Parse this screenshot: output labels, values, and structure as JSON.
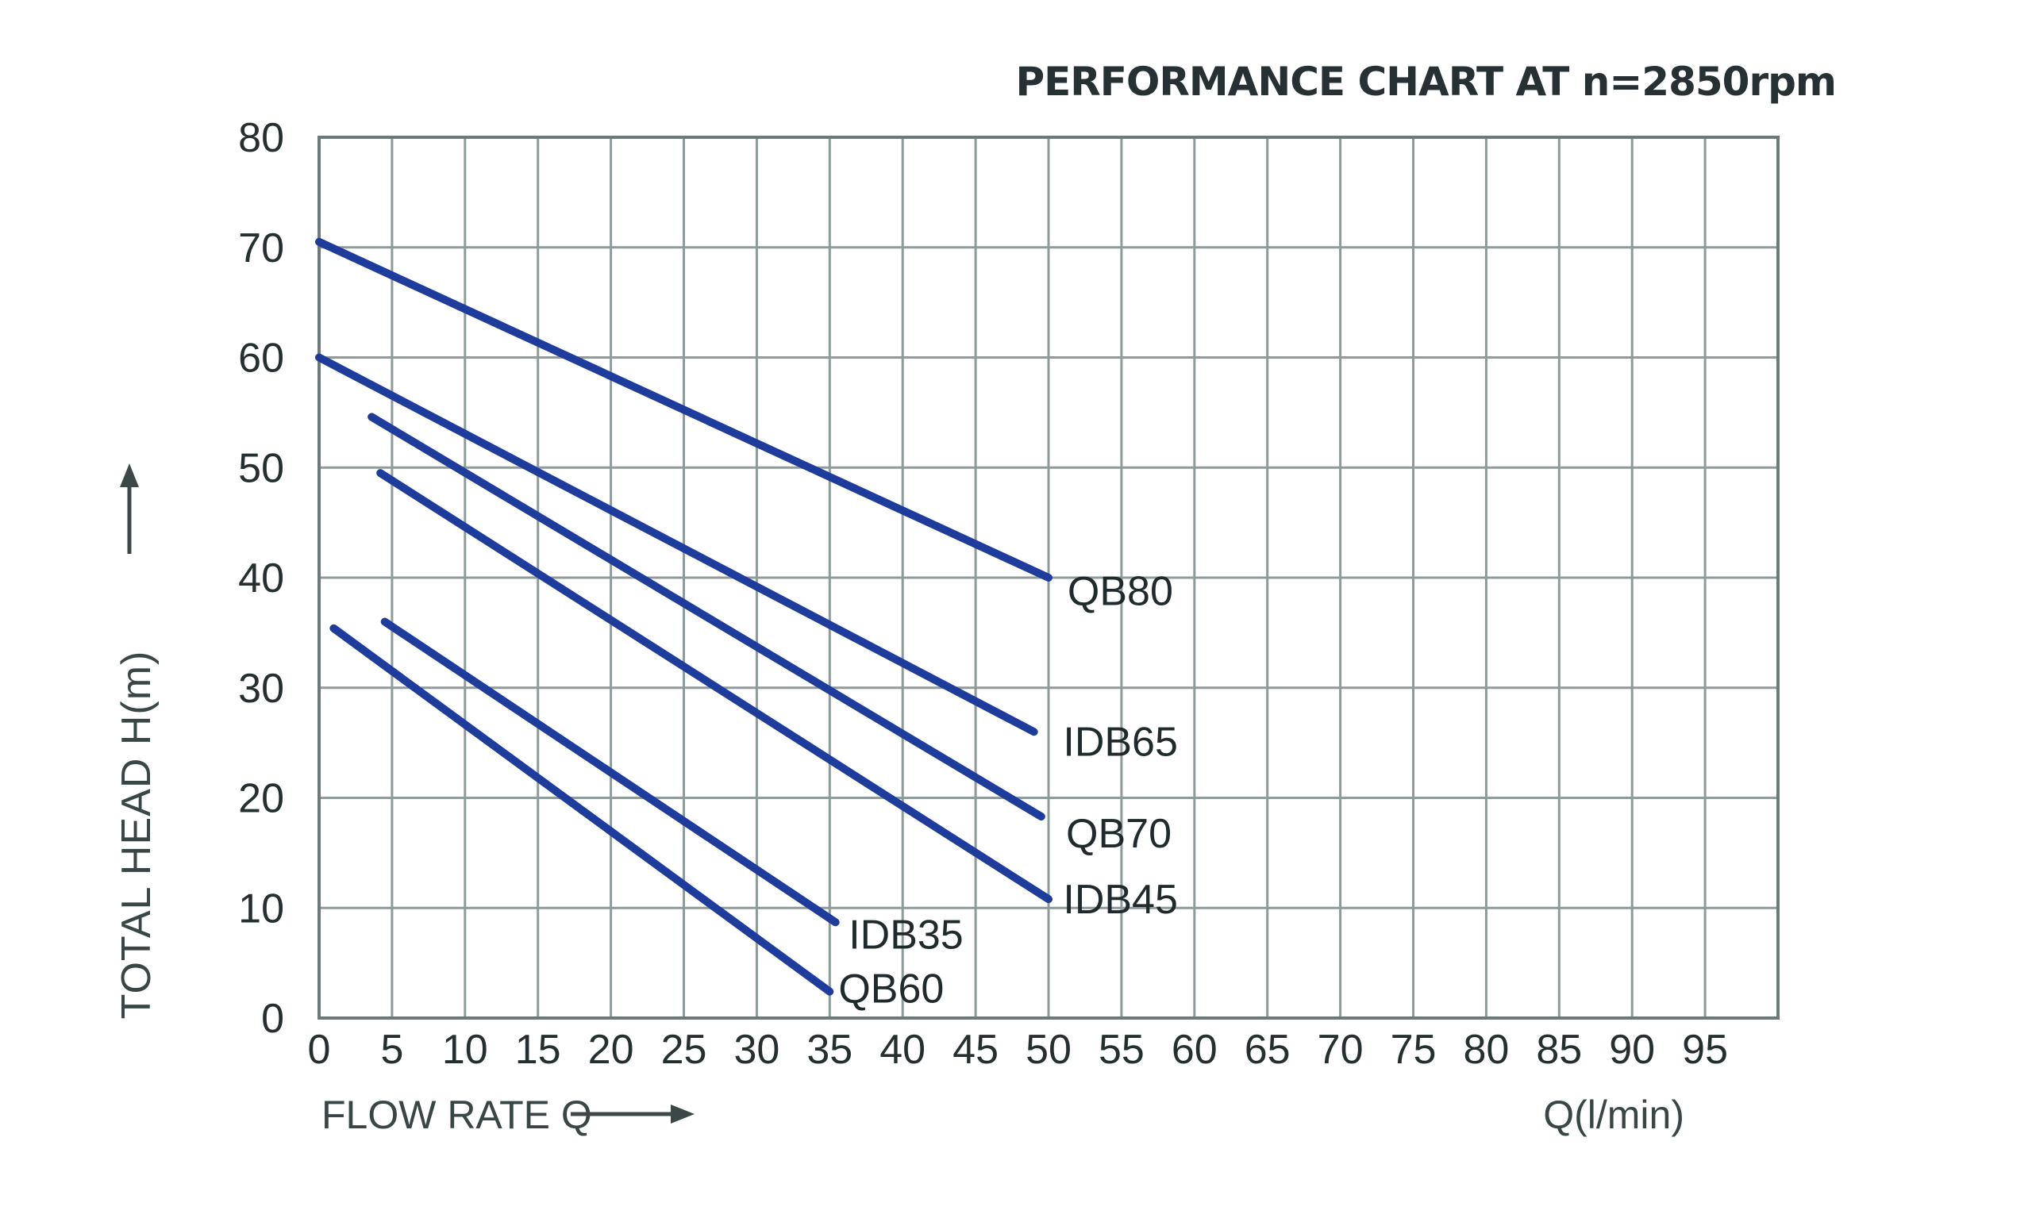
{
  "title": "PERFORMANCE CHART AT n=2850rpm",
  "axes": {
    "x_title": "FLOW RATE Q",
    "x_unit": "Q(l/min)",
    "y_title": "TOTAL HEAD H(m)"
  },
  "colors": {
    "curve": "#1e3c9c",
    "grid": "#8f9a9a",
    "plot_border": "#6e7a7a",
    "tick_text": "#262f30",
    "title_text": "#273134",
    "axis_title_text": "#3a4545",
    "arrow": "#3c4747",
    "background": "#ffffff"
  },
  "chart_data": {
    "type": "line",
    "title": "PERFORMANCE CHART AT n=2850rpm",
    "xlabel": "FLOW RATE Q (l/min)",
    "ylabel": "TOTAL HEAD H(m)",
    "xlim": [
      0,
      100
    ],
    "ylim": [
      0,
      80
    ],
    "x_grid_step": 5,
    "y_grid_step": 10,
    "grid": true,
    "legend_position": "inline-labels",
    "x_tick_labels": [
      0,
      5,
      10,
      15,
      20,
      25,
      30,
      35,
      40,
      45,
      50,
      55,
      60,
      65,
      70,
      75,
      80,
      85,
      90,
      95
    ],
    "y_tick_labels": [
      0,
      10,
      20,
      30,
      40,
      50,
      60,
      70,
      80
    ],
    "series": [
      {
        "name": "QB80",
        "points": [
          [
            0,
            70.5
          ],
          [
            50,
            40.0
          ]
        ],
        "label_at": [
          51.3,
          38.8
        ]
      },
      {
        "name": "IDB65",
        "points": [
          [
            0,
            60.0
          ],
          [
            49,
            26.0
          ]
        ],
        "label_at": [
          51.0,
          25.1
        ]
      },
      {
        "name": "QB70",
        "points": [
          [
            3.6,
            54.6
          ],
          [
            49.5,
            18.3
          ]
        ],
        "label_at": [
          51.2,
          16.8
        ]
      },
      {
        "name": "IDB45",
        "points": [
          [
            4.2,
            49.5
          ],
          [
            50,
            10.8
          ]
        ],
        "label_at": [
          51.0,
          10.8
        ]
      },
      {
        "name": "IDB35",
        "points": [
          [
            4.5,
            36.0
          ],
          [
            35.4,
            8.7
          ]
        ],
        "label_at": [
          36.3,
          7.6
        ]
      },
      {
        "name": "QB60",
        "points": [
          [
            1.0,
            35.4
          ],
          [
            35,
            2.4
          ]
        ],
        "label_at": [
          35.6,
          2.7
        ]
      }
    ]
  }
}
